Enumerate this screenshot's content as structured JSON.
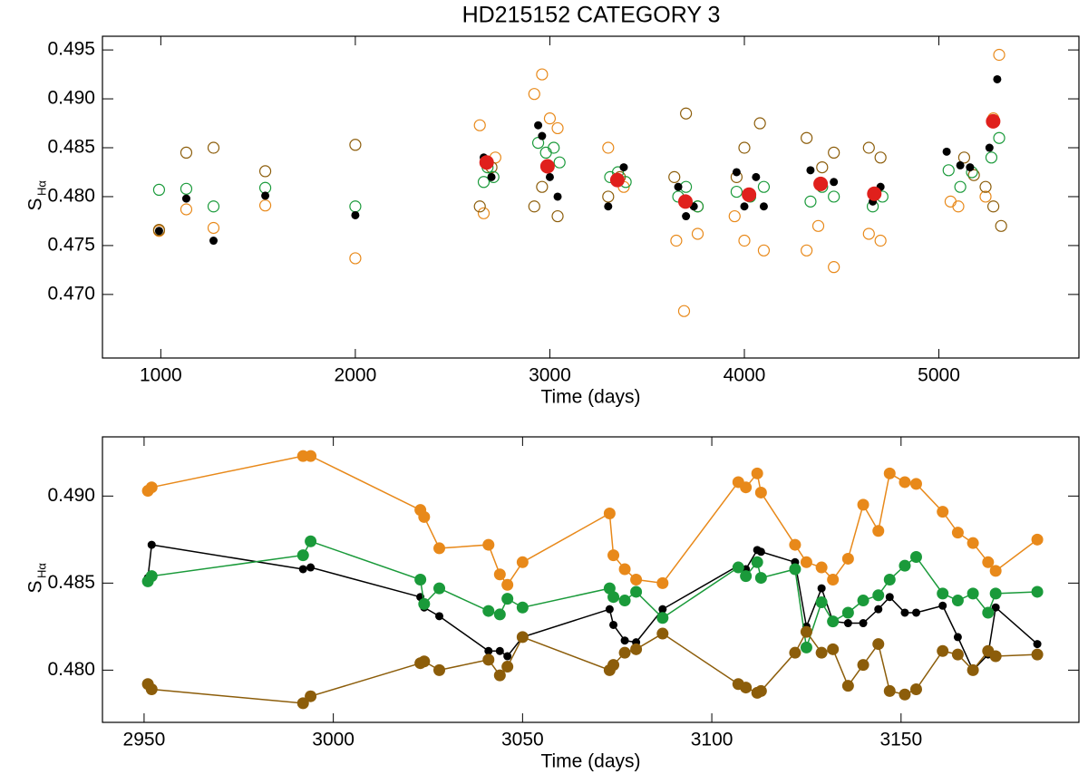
{
  "chart_data": [
    {
      "type": "scatter",
      "title": "HD215152 CATEGORY 3",
      "x_label": "Time (days)",
      "y_label": "S",
      "y_label_sub": "Hα",
      "xlim": [
        700,
        5720
      ],
      "xticks": [
        1000,
        2000,
        3000,
        4000,
        5000
      ],
      "ylim": [
        0.4635,
        0.4964
      ],
      "yticks": [
        {
          "value": 0.47,
          "label": "0.470"
        },
        0.475,
        {
          "value": 0.48,
          "label": "0.480"
        },
        0.485,
        {
          "value": 0.49,
          "label": "0.490"
        },
        0.495
      ],
      "series": [
        {
          "color": "#e8891a",
          "marker": "open",
          "x": [
            991,
            1131,
            1271,
            1537,
            2000,
            2640,
            2660,
            2720,
            2920,
            2960,
            3000,
            3040,
            3300,
            3380,
            3650,
            3690,
            3760,
            3950,
            4000,
            4100,
            4320,
            4380,
            4460,
            4640,
            4700,
            5060,
            5100,
            5240,
            5280,
            5310
          ],
          "values": [
            0.4765,
            0.4787,
            0.4768,
            0.4791,
            0.4737,
            0.4873,
            0.4783,
            0.484,
            0.4905,
            0.4925,
            0.488,
            0.487,
            0.485,
            0.481,
            0.4755,
            0.4683,
            0.4762,
            0.478,
            0.4755,
            0.4745,
            0.4745,
            0.477,
            0.4728,
            0.4762,
            0.4755,
            0.4795,
            0.479,
            0.48,
            0.488,
            0.4945
          ]
        },
        {
          "color": "#8c5d0a",
          "marker": "open",
          "x": [
            991,
            1131,
            1271,
            1537,
            2000,
            2640,
            2700,
            2920,
            2960,
            3040,
            3300,
            3360,
            3640,
            3700,
            3760,
            3960,
            4000,
            4080,
            4320,
            4400,
            4460,
            4640,
            4700,
            5130,
            5180,
            5240,
            5280,
            5320
          ],
          "values": [
            0.4766,
            0.4845,
            0.485,
            0.4826,
            0.4853,
            0.479,
            0.483,
            0.479,
            0.481,
            0.478,
            0.48,
            0.482,
            0.482,
            0.4885,
            0.479,
            0.482,
            0.485,
            0.4875,
            0.486,
            0.483,
            0.4845,
            0.485,
            0.484,
            0.484,
            0.4822,
            0.481,
            0.479,
            0.477
          ]
        },
        {
          "color": "#1a9a3a",
          "marker": "open",
          "x": [
            991,
            1131,
            1271,
            1537,
            2000,
            2660,
            2680,
            2710,
            2940,
            2980,
            3020,
            3050,
            3310,
            3350,
            3390,
            3660,
            3700,
            3760,
            3960,
            4030,
            4100,
            4340,
            4400,
            4460,
            4660,
            4710,
            5050,
            5110,
            5170,
            5270,
            5310
          ],
          "values": [
            0.4807,
            0.4808,
            0.479,
            0.4809,
            0.479,
            0.4815,
            0.483,
            0.482,
            0.4855,
            0.4845,
            0.485,
            0.4835,
            0.482,
            0.4825,
            0.4815,
            0.48,
            0.481,
            0.479,
            0.4805,
            0.48,
            0.481,
            0.4795,
            0.481,
            0.48,
            0.479,
            0.48,
            0.4827,
            0.481,
            0.4825,
            0.484,
            0.486
          ]
        },
        {
          "color": "#000000",
          "marker": "filled",
          "x": [
            991,
            1131,
            1271,
            1537,
            2000,
            2660,
            2700,
            2940,
            2960,
            3000,
            3040,
            3300,
            3340,
            3380,
            3660,
            3700,
            3740,
            3960,
            4000,
            4060,
            4100,
            4340,
            4400,
            4460,
            4660,
            4700,
            5040,
            5110,
            5160,
            5260,
            5300
          ],
          "values": [
            0.4765,
            0.4798,
            0.4755,
            0.4801,
            0.4781,
            0.484,
            0.482,
            0.4873,
            0.4862,
            0.482,
            0.48,
            0.479,
            0.4815,
            0.483,
            0.481,
            0.478,
            0.479,
            0.4825,
            0.479,
            0.482,
            0.479,
            0.4827,
            0.4815,
            0.4815,
            0.4795,
            0.481,
            0.4846,
            0.4832,
            0.483,
            0.485,
            0.492
          ]
        },
        {
          "color": "#e0201c",
          "marker": "big",
          "x": [
            2675,
            2988,
            3347,
            3697,
            4024,
            4392,
            4668,
            5279
          ],
          "values": [
            0.4835,
            0.4831,
            0.4817,
            0.4795,
            0.4802,
            0.4813,
            0.4803,
            0.4877
          ]
        }
      ]
    },
    {
      "type": "line",
      "x_label": "Time (days)",
      "y_label": "S",
      "y_label_sub": "Hα",
      "xlim": [
        2939,
        3197
      ],
      "xticks": [
        2950,
        3000,
        3050,
        3100,
        3150
      ],
      "ylim": [
        0.477,
        0.4934
      ],
      "yticks": [
        {
          "value": 0.48,
          "label": "0.480"
        },
        0.485,
        {
          "value": 0.49,
          "label": "0.490"
        }
      ],
      "x": [
        2951,
        2952,
        2992,
        2994,
        3023,
        3024,
        3028,
        3041,
        3044,
        3046,
        3050,
        3073,
        3074,
        3077,
        3080,
        3087,
        3107,
        3109,
        3112,
        3113,
        3122,
        3125,
        3129,
        3132,
        3136,
        3140,
        3144,
        3147,
        3151,
        3154,
        3161,
        3165,
        3169,
        3173,
        3175,
        3186
      ],
      "series": [
        {
          "color": "#e8891a",
          "values": [
            0.4903,
            0.4905,
            0.4923,
            0.4923,
            0.4892,
            0.4888,
            0.487,
            0.4872,
            0.4855,
            0.4849,
            0.4862,
            0.489,
            0.4866,
            0.4858,
            0.4852,
            0.485,
            0.4908,
            0.4905,
            0.4913,
            0.4902,
            0.4872,
            0.4862,
            0.4859,
            0.4852,
            0.4864,
            0.4895,
            0.488,
            0.4913,
            0.4908,
            0.4907,
            0.4891,
            0.4879,
            0.4873,
            0.4862,
            0.4857,
            0.4875
          ]
        },
        {
          "color": "#000000",
          "values": [
            0.4853,
            0.4872,
            0.4858,
            0.4859,
            0.4842,
            0.4836,
            0.4831,
            0.4811,
            0.4811,
            0.4808,
            0.4819,
            0.4835,
            0.4826,
            0.4817,
            0.4816,
            0.4835,
            0.486,
            0.4858,
            0.4869,
            0.4868,
            0.4862,
            0.4825,
            0.4847,
            0.4828,
            0.4827,
            0.4827,
            0.4835,
            0.4842,
            0.4833,
            0.4833,
            0.4837,
            0.4819,
            0.48,
            0.4809,
            0.4836,
            0.4815
          ]
        },
        {
          "color": "#1a9a3a",
          "values": [
            0.4851,
            0.4854,
            0.4866,
            0.4874,
            0.4852,
            0.4838,
            0.4847,
            0.4834,
            0.4832,
            0.4841,
            0.4836,
            0.4847,
            0.4842,
            0.484,
            0.4845,
            0.483,
            0.4859,
            0.4854,
            0.4862,
            0.4853,
            0.4858,
            0.4813,
            0.4839,
            0.4828,
            0.4833,
            0.484,
            0.4843,
            0.4852,
            0.486,
            0.4865,
            0.4844,
            0.484,
            0.4844,
            0.4833,
            0.4844,
            0.4845
          ]
        },
        {
          "color": "#8c5d0a",
          "values": [
            0.4792,
            0.4789,
            0.4781,
            0.4785,
            0.4804,
            0.4805,
            0.48,
            0.4806,
            0.4797,
            0.4802,
            0.4819,
            0.48,
            0.4803,
            0.481,
            0.4812,
            0.4821,
            0.4792,
            0.479,
            0.4787,
            0.4788,
            0.481,
            0.4822,
            0.481,
            0.4812,
            0.4791,
            0.4803,
            0.4815,
            0.4788,
            0.4786,
            0.4789,
            0.4811,
            0.4809,
            0.48,
            0.4811,
            0.4808,
            0.4809
          ]
        }
      ]
    }
  ]
}
